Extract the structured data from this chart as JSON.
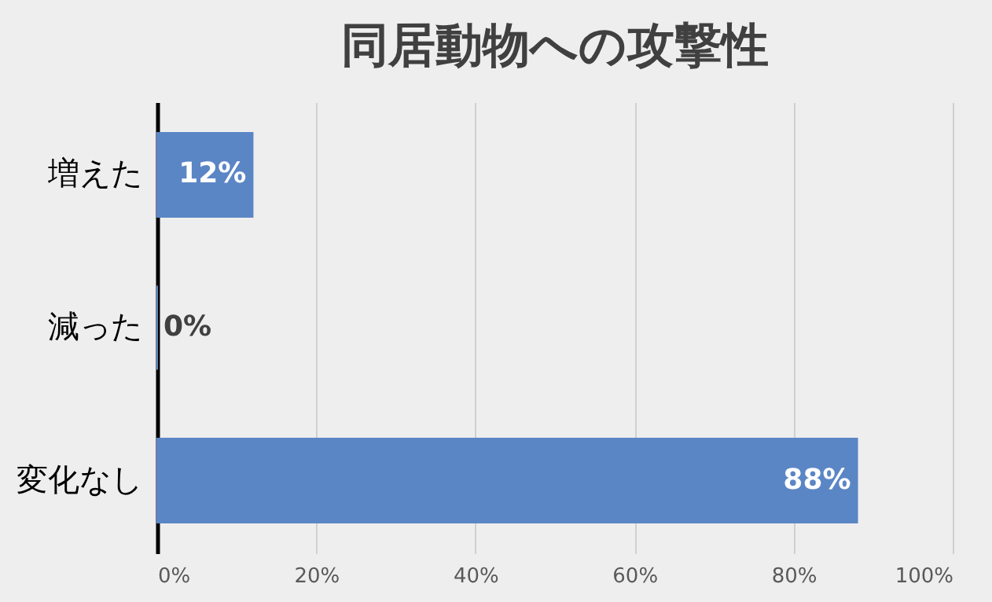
{
  "chart_data": {
    "type": "bar",
    "orientation": "horizontal",
    "title": "同居動物への攻撃性",
    "categories": [
      "増えた",
      "減った",
      "変化なし"
    ],
    "values": [
      12,
      0,
      88
    ],
    "value_labels": [
      "12%",
      "0%",
      "88%"
    ],
    "color": "#5b86c5",
    "xlim": [
      0,
      100
    ],
    "xticks": [
      {
        "value": 0,
        "label": "0%"
      },
      {
        "value": 20,
        "label": "20%"
      },
      {
        "value": 40,
        "label": "40%"
      },
      {
        "value": 60,
        "label": "60%"
      },
      {
        "value": 80,
        "label": "80%"
      },
      {
        "value": 100,
        "label": "100%"
      }
    ],
    "grid": "x"
  }
}
